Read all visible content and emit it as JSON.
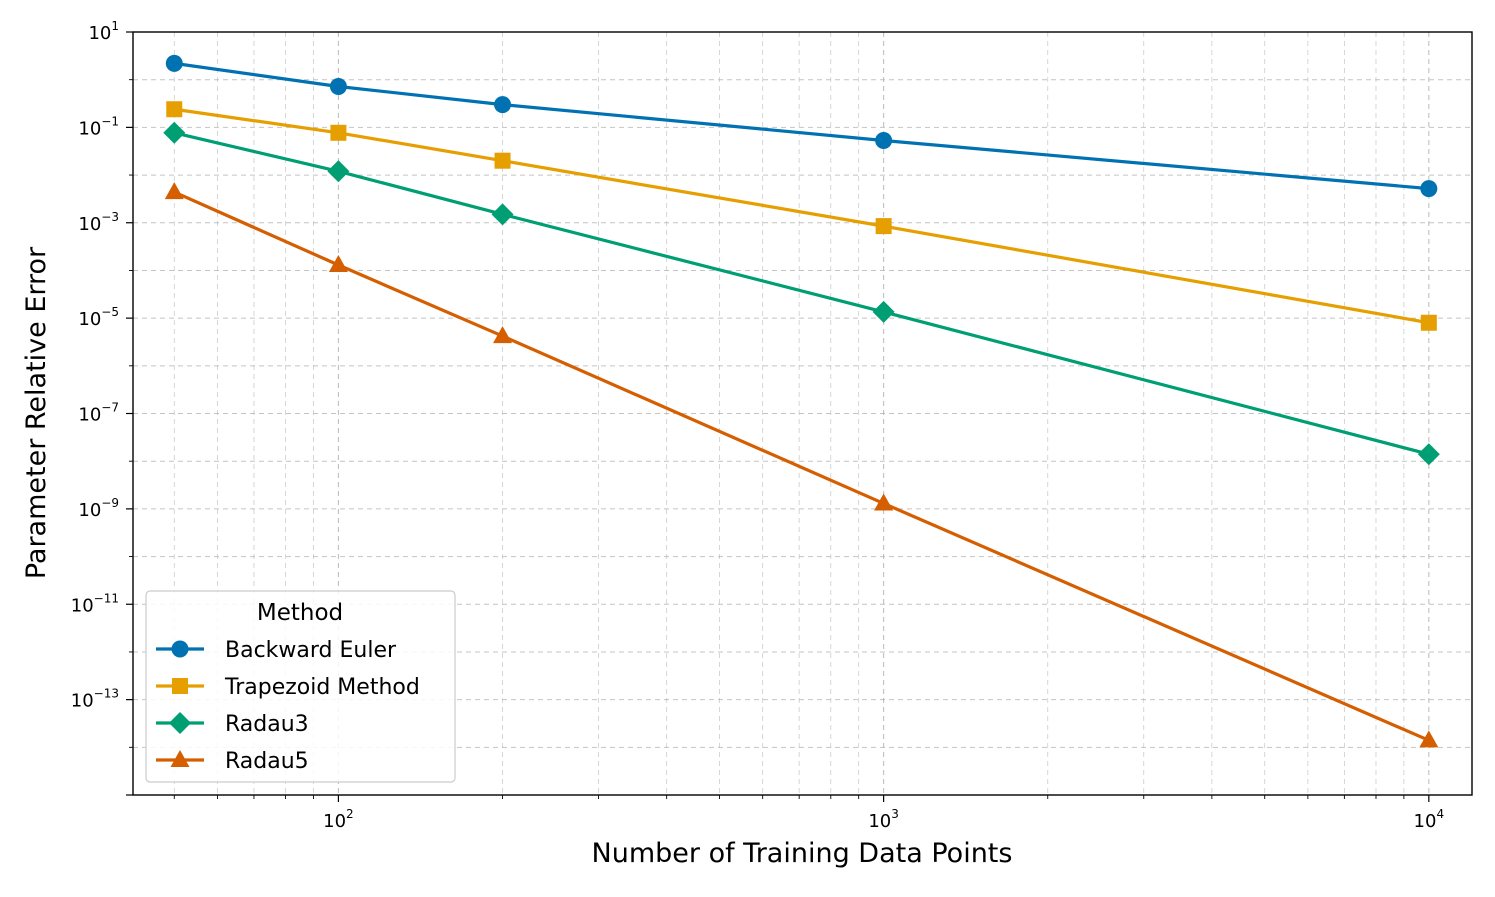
{
  "chart_data": {
    "type": "line",
    "xscale": "log",
    "yscale": "log",
    "xlabel": "Number of Training Data Points",
    "ylabel": "Parameter Relative Error",
    "xlim": [
      42,
      12000
    ],
    "ylim": [
      1e-15,
      10
    ],
    "grid": true,
    "x": [
      50,
      100,
      200,
      1000,
      10000
    ],
    "xticks": [
      {
        "value": 100,
        "base": "10",
        "exp": "2"
      },
      {
        "value": 1000,
        "base": "10",
        "exp": "3"
      },
      {
        "value": 10000,
        "base": "10",
        "exp": "4"
      }
    ],
    "yticks": [
      {
        "value": 10,
        "base": "10",
        "exp": "1"
      },
      {
        "value": 0.1,
        "base": "10",
        "exp": "−1"
      },
      {
        "value": 0.001,
        "base": "10",
        "exp": "−3"
      },
      {
        "value": 1e-05,
        "base": "10",
        "exp": "−5"
      },
      {
        "value": 1e-07,
        "base": "10",
        "exp": "−7"
      },
      {
        "value": 1e-09,
        "base": "10",
        "exp": "−9"
      },
      {
        "value": 1e-11,
        "base": "10",
        "exp": "−11"
      },
      {
        "value": 1e-13,
        "base": "10",
        "exp": "−13"
      }
    ],
    "legend": {
      "title": "Method",
      "placement": "lower-left"
    },
    "series": [
      {
        "name": "Backward Euler",
        "color": "#0072B2",
        "marker": "circle",
        "values": [
          2.2,
          0.72,
          0.3,
          0.053,
          0.0052
        ]
      },
      {
        "name": "Trapezoid Method",
        "color": "#E69F00",
        "marker": "square",
        "values": [
          0.24,
          0.077,
          0.02,
          0.00085,
          8e-06
        ]
      },
      {
        "name": "Radau3",
        "color": "#009E73",
        "marker": "diamond",
        "values": [
          0.077,
          0.012,
          0.0015,
          1.35e-05,
          1.4e-08
        ]
      },
      {
        "name": "Radau5",
        "color": "#D55E00",
        "marker": "triangle",
        "values": [
          0.0044,
          0.00013,
          4.2e-06,
          1.3e-09,
          1.4e-14
        ]
      }
    ]
  }
}
